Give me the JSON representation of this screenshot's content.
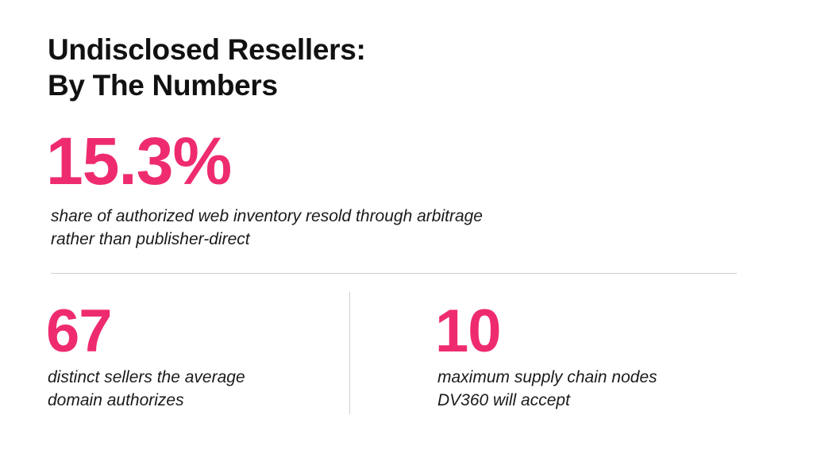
{
  "title": [
    "Undisclosed Resellers:",
    "By The Numbers"
  ],
  "headline_stat": {
    "value": "15.3%",
    "description": [
      "share of authorized web inventory resold through arbitrage",
      "rather than publisher-direct"
    ]
  },
  "stats": [
    {
      "value": "67",
      "description": [
        "distinct sellers the average",
        "domain authorizes"
      ]
    },
    {
      "value": "10",
      "description": [
        "maximum supply chain nodes",
        "DV360 will accept"
      ]
    }
  ]
}
